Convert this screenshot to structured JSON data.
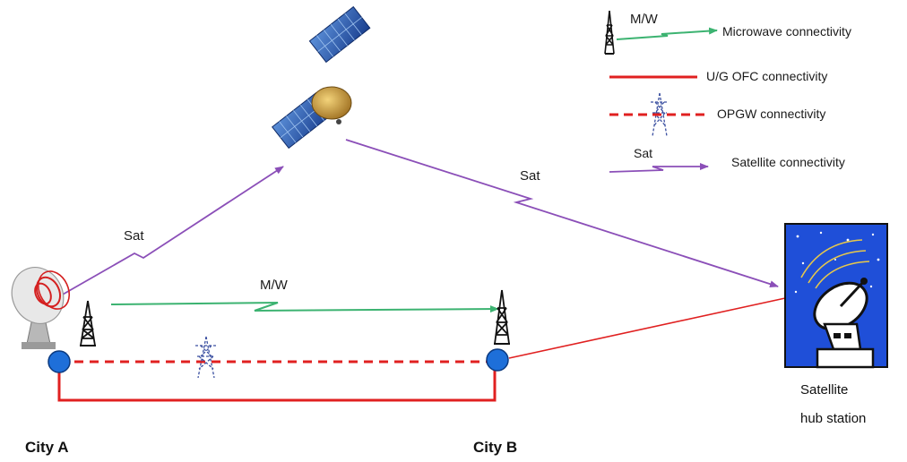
{
  "colors": {
    "microwave": "#3cb371",
    "ofc": "#e02020",
    "opgw": "#e02020",
    "satellite": "#8b4fb8",
    "node": "#1e6fd9",
    "hub_bg": "#1f4fd8"
  },
  "legend": {
    "microwave": {
      "code": "M/W",
      "text": "Microwave connectivity"
    },
    "ofc": {
      "text": "U/G OFC connectivity"
    },
    "opgw": {
      "text": "OPGW connectivity"
    },
    "satellite": {
      "code": "Sat",
      "text": "Satellite connectivity"
    }
  },
  "links": {
    "sat_uplink_label": "Sat",
    "sat_downlink_label": "Sat",
    "mw_label": "M/W"
  },
  "nodes": {
    "city_a": "City A",
    "city_b": "City B",
    "hub_line1": "Satellite",
    "hub_line2": "hub station"
  },
  "icons": {
    "satellite": "satellite-icon",
    "dish": "dish-antenna-icon",
    "tower": "microwave-tower-icon",
    "pylon": "transmission-pylon-icon",
    "hub": "satellite-hub-icon"
  }
}
